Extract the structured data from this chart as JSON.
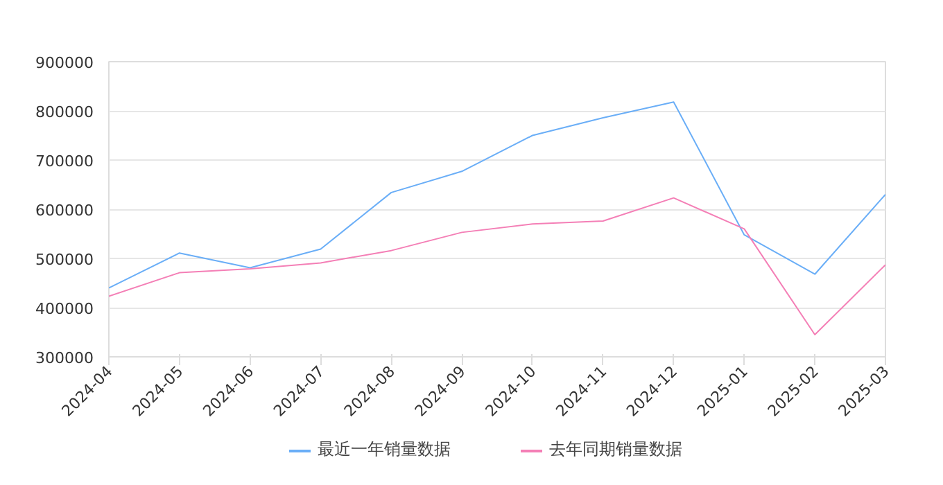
{
  "chart_data": {
    "type": "line",
    "categories": [
      "2024-04",
      "2024-05",
      "2024-06",
      "2024-07",
      "2024-08",
      "2024-09",
      "2024-10",
      "2024-11",
      "2024-12",
      "2025-01",
      "2025-02",
      "2025-03"
    ],
    "series": [
      {
        "name": "最近一年销量数据",
        "color": "#6aaef7",
        "values": [
          440000,
          511000,
          481000,
          519000,
          634000,
          677000,
          750000,
          786000,
          818000,
          548000,
          468000,
          630000
        ]
      },
      {
        "name": "去年同期销量数据",
        "color": "#f47fb6",
        "values": [
          423000,
          471000,
          479000,
          491000,
          516000,
          553000,
          570000,
          576000,
          623000,
          560000,
          345000,
          487000
        ]
      }
    ],
    "ylim": [
      300000,
      900000
    ],
    "yticks": [
      300000,
      400000,
      500000,
      600000,
      700000,
      800000,
      900000
    ],
    "grid": "y",
    "legend": "bottom",
    "marker": "none",
    "line_style": "solid"
  }
}
